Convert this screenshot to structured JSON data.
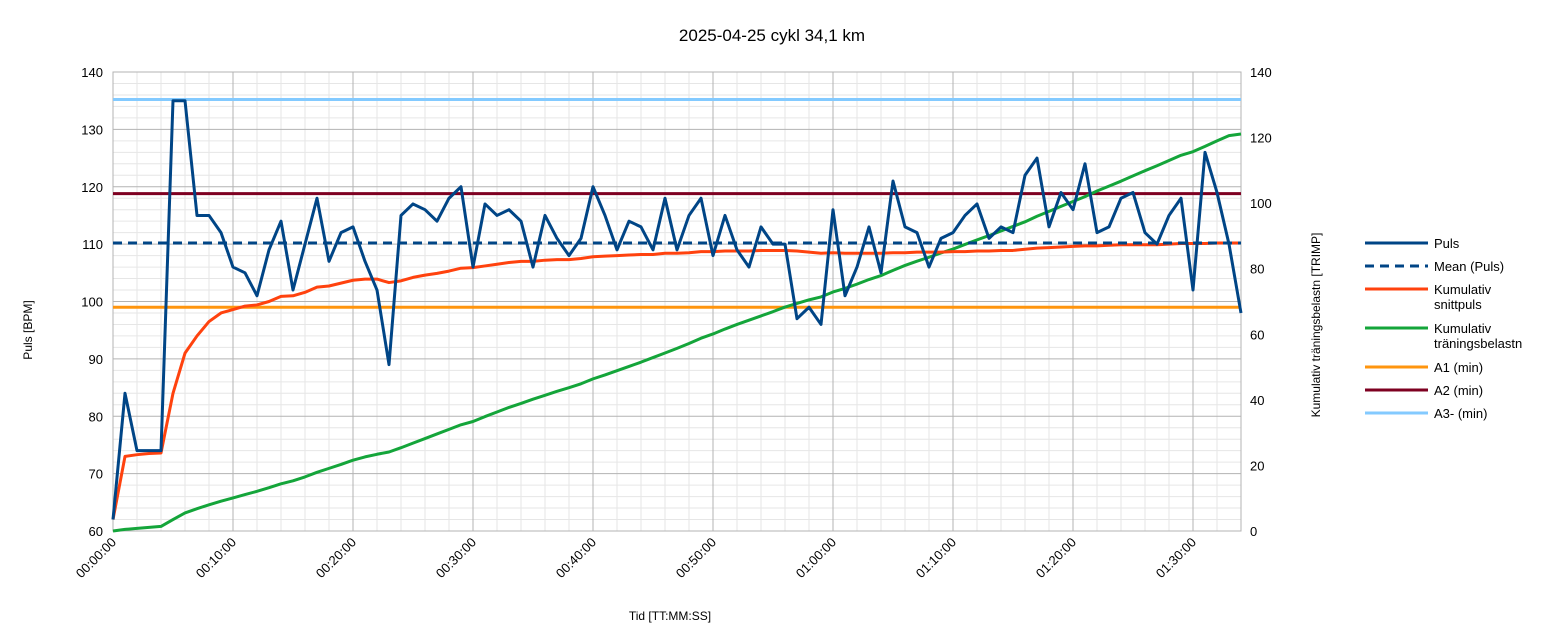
{
  "chart_data": {
    "type": "line",
    "title": "2025-04-25 cykl 34,1 km",
    "xlabel": "Tid [TT:MM:SS]",
    "ylabel": "Puls [BPM]",
    "y2label": "Kumulativ träningsbelastn [TRIMP]",
    "xlim_minutes": [
      0,
      94
    ],
    "ylim": [
      60,
      140
    ],
    "y2lim": [
      0,
      140
    ],
    "x_ticks": [
      "00:00:00",
      "00:10:00",
      "00:20:00",
      "00:30:00",
      "00:40:00",
      "00:50:00",
      "01:00:00",
      "01:10:00",
      "01:20:00",
      "01:30:00"
    ],
    "x_tick_minutes": [
      0,
      10,
      20,
      30,
      40,
      50,
      60,
      70,
      80,
      90
    ],
    "y_ticks": [
      60,
      70,
      80,
      90,
      100,
      110,
      120,
      130,
      140
    ],
    "y2_ticks": [
      0,
      20,
      40,
      60,
      80,
      100,
      120,
      140
    ],
    "grid": true,
    "legend_position": "right",
    "series": [
      {
        "name": "Puls",
        "axis": "left",
        "color": "#004586",
        "style": "solid",
        "x": [
          0,
          1,
          2,
          3,
          4,
          5,
          6,
          7,
          8,
          9,
          10,
          11,
          12,
          13,
          14,
          15,
          16,
          17,
          18,
          19,
          20,
          21,
          22,
          23,
          24,
          25,
          26,
          27,
          28,
          29,
          30,
          31,
          32,
          33,
          34,
          35,
          36,
          37,
          38,
          39,
          40,
          41,
          42,
          43,
          44,
          45,
          46,
          47,
          48,
          49,
          50,
          51,
          52,
          53,
          54,
          55,
          56,
          57,
          58,
          59,
          60,
          61,
          62,
          63,
          64,
          65,
          66,
          67,
          68,
          69,
          70,
          71,
          72,
          73,
          74,
          75,
          76,
          77,
          78,
          79,
          80,
          81,
          82,
          83,
          84,
          85,
          86,
          87,
          88,
          89,
          90,
          91,
          92,
          93,
          94
        ],
        "y": [
          62,
          84,
          74,
          74,
          74,
          135,
          135,
          115,
          115,
          112,
          106,
          105,
          101,
          109,
          114,
          102,
          110,
          118,
          107,
          112,
          113,
          107,
          102,
          89,
          115,
          117,
          116,
          114,
          118,
          120,
          106,
          117,
          115,
          116,
          114,
          106,
          115,
          111,
          108,
          111,
          120,
          115,
          109,
          114,
          113,
          109,
          118,
          109,
          115,
          118,
          108,
          115,
          109,
          106,
          113,
          110,
          110,
          97,
          99,
          96,
          116,
          101,
          106,
          113,
          105,
          121,
          113,
          112,
          106,
          111,
          112,
          115,
          117,
          111,
          113,
          112,
          122,
          125,
          113,
          119,
          116,
          124,
          112,
          113,
          118,
          119,
          112,
          110,
          115,
          118,
          102,
          126,
          119,
          110,
          98
        ]
      },
      {
        "name": "Mean (Puls)",
        "axis": "left",
        "color": "#004586",
        "style": "dashed",
        "x": [
          0,
          94
        ],
        "y": [
          110.2,
          110.2
        ]
      },
      {
        "name": "Kumulativ snittpuls",
        "axis": "left",
        "color": "#ff420e",
        "style": "solid",
        "x": [
          0,
          1,
          2,
          3,
          4,
          5,
          6,
          7,
          8,
          9,
          10,
          11,
          12,
          13,
          14,
          15,
          16,
          17,
          18,
          19,
          20,
          21,
          22,
          23,
          24,
          25,
          26,
          27,
          28,
          29,
          30,
          31,
          32,
          33,
          34,
          35,
          36,
          37,
          38,
          39,
          40,
          41,
          42,
          43,
          44,
          45,
          46,
          47,
          48,
          49,
          50,
          51,
          52,
          53,
          54,
          55,
          56,
          57,
          58,
          59,
          60,
          61,
          62,
          63,
          64,
          65,
          66,
          67,
          68,
          69,
          70,
          71,
          72,
          73,
          74,
          75,
          76,
          77,
          78,
          79,
          80,
          81,
          82,
          83,
          84,
          85,
          86,
          87,
          88,
          89,
          90,
          91,
          92,
          93,
          94
        ],
        "y": [
          62,
          73,
          73.3,
          73.5,
          73.6,
          84,
          91,
          94,
          96.5,
          98,
          98.6,
          99.2,
          99.4,
          100,
          100.9,
          101,
          101.6,
          102.5,
          102.7,
          103.2,
          103.7,
          103.9,
          103.9,
          103.3,
          103.6,
          104.2,
          104.6,
          104.9,
          105.3,
          105.8,
          105.9,
          106.2,
          106.5,
          106.8,
          107,
          107,
          107.2,
          107.3,
          107.3,
          107.5,
          107.8,
          107.9,
          108,
          108.1,
          108.2,
          108.2,
          108.4,
          108.4,
          108.5,
          108.7,
          108.7,
          108.8,
          108.8,
          108.8,
          108.9,
          108.9,
          108.9,
          108.8,
          108.6,
          108.4,
          108.5,
          108.4,
          108.4,
          108.4,
          108.4,
          108.5,
          108.5,
          108.6,
          108.6,
          108.6,
          108.7,
          108.7,
          108.8,
          108.8,
          108.9,
          108.9,
          109.1,
          109.3,
          109.4,
          109.5,
          109.6,
          109.7,
          109.7,
          109.8,
          109.9,
          109.9,
          109.9,
          109.9,
          110,
          110.1,
          110.1,
          110.1,
          110.2,
          110.2,
          110.2
        ]
      },
      {
        "name": "Kumulativ träningsbelastn",
        "axis": "right",
        "color": "#14a53a",
        "style": "solid",
        "x": [
          0,
          1,
          2,
          3,
          4,
          5,
          6,
          7,
          8,
          9,
          10,
          11,
          12,
          13,
          14,
          15,
          16,
          17,
          18,
          19,
          20,
          21,
          22,
          23,
          24,
          25,
          26,
          27,
          28,
          29,
          30,
          31,
          32,
          33,
          34,
          35,
          36,
          37,
          38,
          39,
          40,
          41,
          42,
          43,
          44,
          45,
          46,
          47,
          48,
          49,
          50,
          51,
          52,
          53,
          54,
          55,
          56,
          57,
          58,
          59,
          60,
          61,
          62,
          63,
          64,
          65,
          66,
          67,
          68,
          69,
          70,
          71,
          72,
          73,
          74,
          75,
          76,
          77,
          78,
          79,
          80,
          81,
          82,
          83,
          84,
          85,
          86,
          87,
          88,
          89,
          90,
          91,
          92,
          93,
          94
        ],
        "y": [
          0,
          0.5,
          0.8,
          1.1,
          1.4,
          3.5,
          5.5,
          6.8,
          8,
          9.1,
          10.1,
          11.1,
          12.1,
          13.2,
          14.4,
          15.3,
          16.5,
          17.9,
          19.1,
          20.3,
          21.6,
          22.6,
          23.4,
          24.1,
          25.4,
          26.8,
          28.2,
          29.6,
          31,
          32.4,
          33.4,
          34.9,
          36.3,
          37.7,
          38.9,
          40.2,
          41.4,
          42.6,
          43.7,
          44.9,
          46.4,
          47.6,
          48.9,
          50.2,
          51.5,
          52.9,
          54.3,
          55.7,
          57.2,
          58.8,
          60.1,
          61.6,
          63,
          64.3,
          65.6,
          66.9,
          68.3,
          69.4,
          70.5,
          71.4,
          72.9,
          74,
          75.3,
          76.7,
          77.9,
          79.5,
          81,
          82.3,
          83.5,
          84.8,
          86,
          87.4,
          88.8,
          90.1,
          91.5,
          92.9,
          94.3,
          96,
          97.5,
          99,
          100.5,
          102,
          103.7,
          105.2,
          106.7,
          108.3,
          109.9,
          111.4,
          113,
          114.6,
          115.7,
          117.3,
          119,
          120.6,
          121.1
        ]
      },
      {
        "name": "A1 (min)",
        "axis": "left",
        "color": "#ff950e",
        "style": "solid",
        "x": [
          0,
          94
        ],
        "y": [
          99,
          99
        ]
      },
      {
        "name": "A2 (min)",
        "axis": "left",
        "color": "#7e0021",
        "style": "solid",
        "x": [
          0,
          94
        ],
        "y": [
          118.8,
          118.8
        ]
      },
      {
        "name": "A3- (min)",
        "axis": "left",
        "color": "#83caff",
        "style": "solid",
        "x": [
          0,
          94
        ],
        "y": [
          135.2,
          135.2
        ]
      }
    ],
    "legend": [
      {
        "label": "Puls",
        "color": "#004586",
        "style": "solid"
      },
      {
        "label": "Mean (Puls)",
        "color": "#004586",
        "style": "dashed"
      },
      {
        "label": "Kumulativ snittpuls",
        "color": "#ff420e",
        "style": "solid",
        "lines": [
          "Kumulativ",
          "snittpuls"
        ]
      },
      {
        "label": "Kumulativ träningsbelastn",
        "color": "#14a53a",
        "style": "solid",
        "lines": [
          "Kumulativ",
          "träningsbelastn"
        ]
      },
      {
        "label": "A1 (min)",
        "color": "#ff950e",
        "style": "solid"
      },
      {
        "label": "A2 (min)",
        "color": "#7e0021",
        "style": "solid"
      },
      {
        "label": "A3- (min)",
        "color": "#83caff",
        "style": "solid"
      }
    ]
  }
}
